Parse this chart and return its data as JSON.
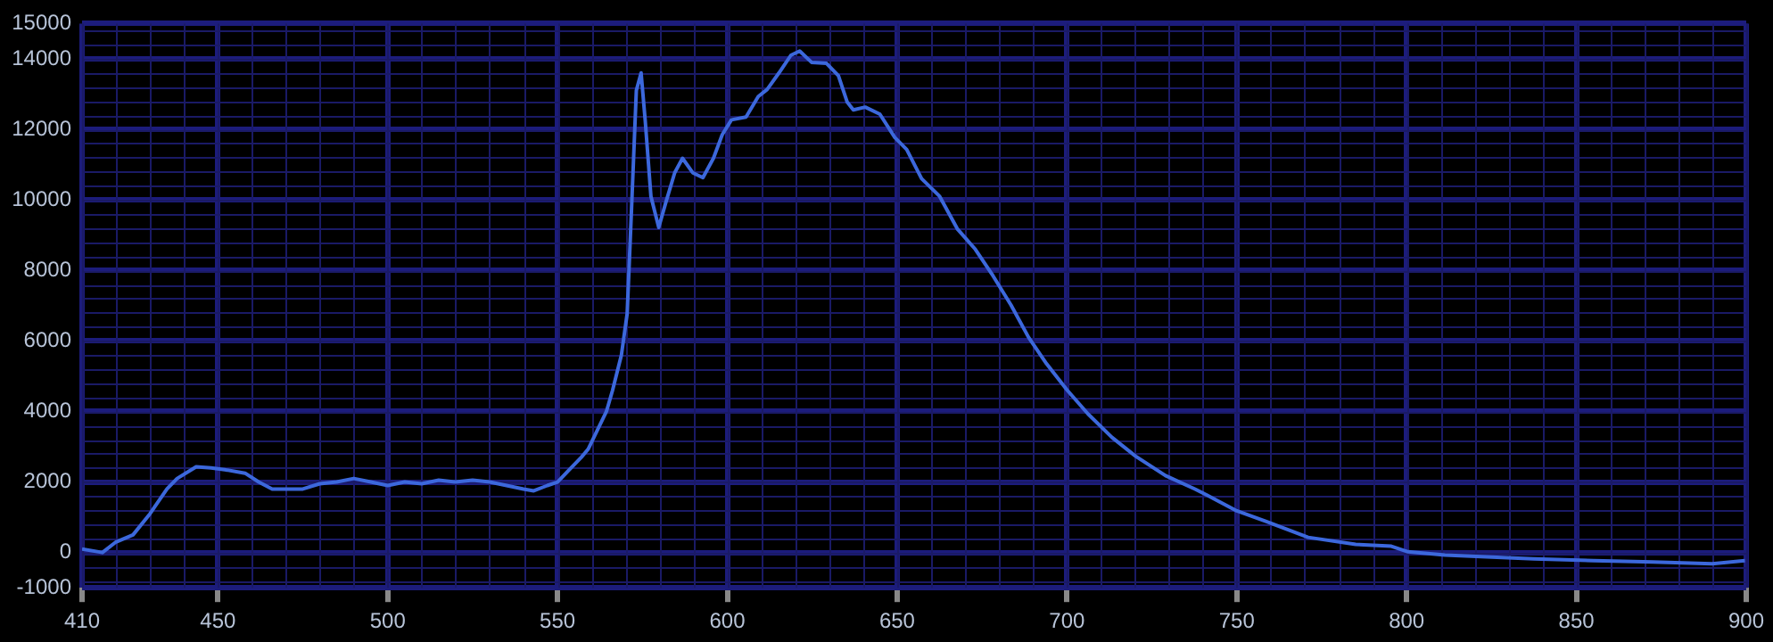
{
  "chart_data": {
    "type": "line",
    "x": [
      410,
      416,
      420,
      425,
      430,
      435,
      438,
      443.6,
      448,
      452,
      458,
      462,
      466,
      475,
      480,
      485,
      490,
      495,
      500,
      505,
      510,
      515,
      520,
      525,
      530,
      535,
      540,
      543,
      547,
      550,
      553,
      557,
      559,
      564.4,
      566.2,
      568.8,
      570.5,
      571.8,
      573.2,
      574.6,
      575.8,
      577.5,
      579.8,
      581.9,
      584.5,
      586.8,
      589.8,
      592.8,
      595.9,
      598.5,
      601.2,
      605.5,
      609.1,
      611.7,
      615.2,
      618.7,
      621.3,
      624.8,
      629.2,
      632.7,
      635.3,
      637.1,
      640.6,
      644.9,
      649.3,
      652.8,
      657.2,
      662.5,
      667.7,
      673,
      678.2,
      683.5,
      688.7,
      694,
      700.1,
      706.2,
      713.2,
      720.2,
      729,
      737.7,
      741.2,
      750,
      758.7,
      771,
      785,
      795.5,
      800.4,
      811.3,
      823.5,
      837.5,
      855,
      872.5,
      890,
      899.6
    ],
    "series": [
      {
        "color": "#3c68dc",
        "values": [
          100,
          0,
          300,
          500,
          1100,
          1800,
          2100,
          2430,
          2400,
          2350,
          2250,
          2000,
          1800,
          1800,
          1950,
          2000,
          2100,
          2000,
          1900,
          2000,
          1950,
          2050,
          2000,
          2050,
          2000,
          1900,
          1800,
          1750,
          1900,
          2000,
          2300,
          2700,
          2930,
          4000,
          4600,
          5600,
          6770,
          9770,
          13100,
          13600,
          12270,
          10100,
          9220,
          9930,
          10770,
          11180,
          10770,
          10630,
          11180,
          11850,
          12270,
          12350,
          12930,
          13130,
          13600,
          14100,
          14220,
          13900,
          13870,
          13520,
          12770,
          12550,
          12630,
          12430,
          11770,
          11430,
          10600,
          10100,
          9180,
          8600,
          7850,
          7020,
          6100,
          5350,
          4600,
          3930,
          3270,
          2730,
          2180,
          1800,
          1630,
          1180,
          880,
          430,
          230,
          180,
          20,
          -70,
          -120,
          -180,
          -230,
          -270,
          -320,
          -230
        ]
      }
    ],
    "xlim": [
      410,
      900
    ],
    "xticks": [
      410,
      450,
      500,
      550,
      600,
      650,
      700,
      750,
      800,
      850,
      900
    ],
    "ylim": [
      -1000,
      15000
    ],
    "yticks": [
      -1000,
      0,
      2000,
      4000,
      6000,
      8000,
      10000,
      12000,
      14000,
      15000
    ],
    "grid": true,
    "marker": "none",
    "line_style": "solid"
  }
}
